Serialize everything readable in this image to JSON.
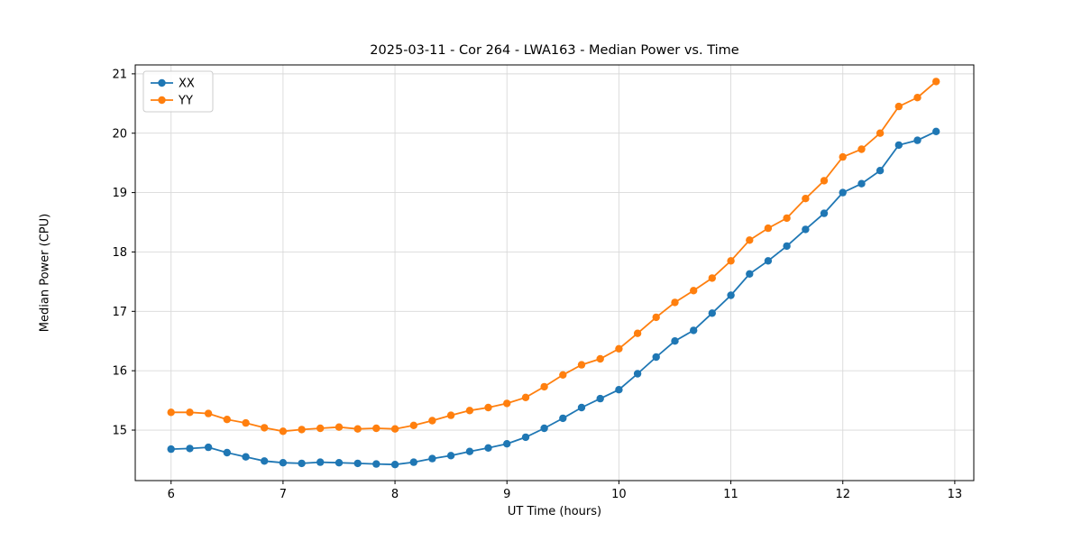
{
  "chart_data": {
    "type": "line",
    "title": "2025-03-11 - Cor 264 - LWA163 - Median Power vs. Time",
    "xlabel": "UT Time (hours)",
    "ylabel": "Median Power (CPU)",
    "xlim": [
      5.68,
      13.17
    ],
    "ylim": [
      14.15,
      21.15
    ],
    "xticks": [
      6,
      7,
      8,
      9,
      10,
      11,
      12,
      13
    ],
    "yticks": [
      15,
      16,
      17,
      18,
      19,
      20,
      21
    ],
    "grid": true,
    "legend_position": "upper left",
    "x": [
      6.0,
      6.167,
      6.333,
      6.5,
      6.667,
      6.833,
      7.0,
      7.167,
      7.333,
      7.5,
      7.667,
      7.833,
      8.0,
      8.167,
      8.333,
      8.5,
      8.667,
      8.833,
      9.0,
      9.167,
      9.333,
      9.5,
      9.667,
      9.833,
      10.0,
      10.167,
      10.333,
      10.5,
      10.667,
      10.833,
      11.0,
      11.167,
      11.333,
      11.5,
      11.667,
      11.833,
      12.0,
      12.167,
      12.333,
      12.5,
      12.667,
      12.833
    ],
    "series": [
      {
        "name": "XX",
        "color": "#1f77b4",
        "values": [
          14.68,
          14.69,
          14.71,
          14.62,
          14.55,
          14.48,
          14.45,
          14.44,
          14.46,
          14.45,
          14.44,
          14.43,
          14.42,
          14.46,
          14.52,
          14.57,
          14.64,
          14.7,
          14.77,
          14.88,
          15.03,
          15.2,
          15.38,
          15.53,
          15.68,
          15.95,
          16.23,
          16.5,
          16.68,
          16.97,
          17.27,
          17.63,
          17.85,
          18.1,
          18.38,
          18.65,
          19.0,
          19.15,
          19.37,
          19.8,
          19.88,
          20.03
        ]
      },
      {
        "name": "YY",
        "color": "#ff7f0e",
        "values": [
          15.3,
          15.3,
          15.28,
          15.18,
          15.12,
          15.04,
          14.98,
          15.01,
          15.03,
          15.05,
          15.02,
          15.03,
          15.02,
          15.08,
          15.16,
          15.25,
          15.33,
          15.38,
          15.45,
          15.55,
          15.73,
          15.93,
          16.1,
          16.2,
          16.37,
          16.63,
          16.9,
          17.15,
          17.35,
          17.56,
          17.85,
          18.2,
          18.4,
          18.57,
          18.9,
          19.2,
          19.6,
          19.73,
          20.0,
          20.45,
          20.6,
          20.87
        ]
      }
    ],
    "style": {
      "grid_color": "#d9d9d9",
      "frame_color": "#000000",
      "tick_label_size": 13,
      "marker_radius": 4.2,
      "line_width": 1.8
    }
  }
}
